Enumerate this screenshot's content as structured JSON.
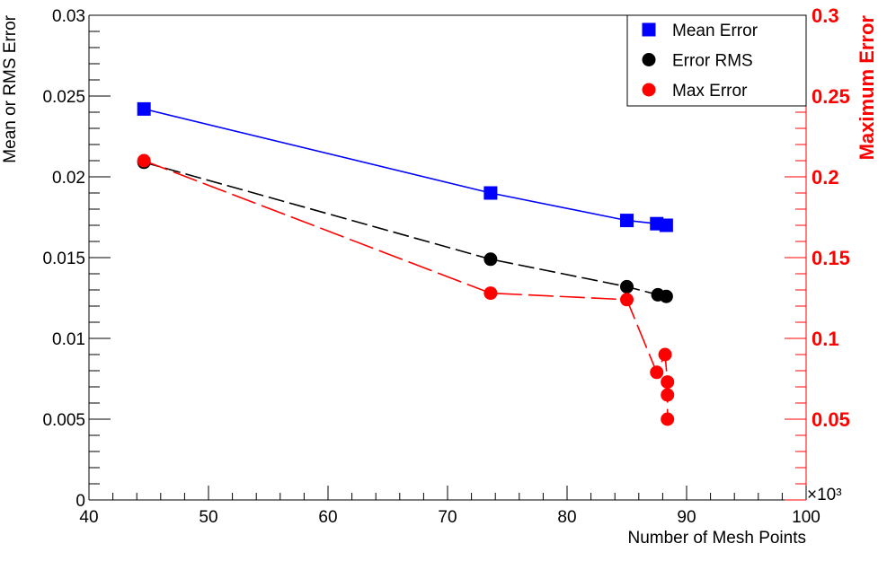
{
  "chart_data": {
    "type": "line",
    "x_axis": {
      "label": "Number of Mesh Points",
      "range": [
        40,
        100
      ],
      "ticks": [
        40,
        50,
        60,
        70,
        80,
        90,
        100
      ],
      "tick_labels": [
        "40",
        "50",
        "60",
        "70",
        "80",
        "90",
        "100"
      ],
      "exponent_label": "×10³",
      "units_multiplier": 1000
    },
    "y_left": {
      "label": "Mean or RMS Error",
      "range": [
        0,
        0.03
      ],
      "ticks": [
        0,
        0.005,
        0.01,
        0.015,
        0.02,
        0.025,
        0.03
      ],
      "tick_labels": [
        "0",
        "0.005",
        "0.01",
        "0.015",
        "0.02",
        "0.025",
        "0.03"
      ]
    },
    "y_right": {
      "label": "Maximum Error",
      "color": "#ff0000",
      "range": [
        0,
        0.3
      ],
      "ticks": [
        0.05,
        0.1,
        0.15,
        0.2,
        0.25,
        0.3
      ],
      "tick_labels": [
        "0.05",
        "0.1",
        "0.15",
        "0.2",
        "0.25",
        "0.3"
      ]
    },
    "series": [
      {
        "name": "Mean Error",
        "axis": "left",
        "color": "#0000ff",
        "marker": "square",
        "line": "solid",
        "x": [
          44.6,
          73.6,
          85.0,
          87.5,
          88.3
        ],
        "y": [
          0.0242,
          0.019,
          0.0173,
          0.0171,
          0.017
        ]
      },
      {
        "name": "Error RMS",
        "axis": "left",
        "color": "#000000",
        "marker": "circle",
        "line": "dashed",
        "x": [
          44.6,
          73.6,
          85.0,
          87.6,
          88.3
        ],
        "y": [
          0.0209,
          0.0149,
          0.0132,
          0.0127,
          0.0126
        ]
      },
      {
        "name": "Max Error",
        "axis": "right",
        "color": "#ff0000",
        "marker": "circle",
        "line": "dashed",
        "x": [
          44.6,
          73.6,
          85.0,
          87.5,
          88.2,
          88.4,
          88.4,
          88.4
        ],
        "y": [
          0.21,
          0.128,
          0.124,
          0.079,
          0.09,
          0.073,
          0.065,
          0.05
        ]
      }
    ],
    "legend": {
      "position": "top-right",
      "entries": [
        "Mean Error",
        "Error RMS",
        "Max Error"
      ]
    }
  }
}
